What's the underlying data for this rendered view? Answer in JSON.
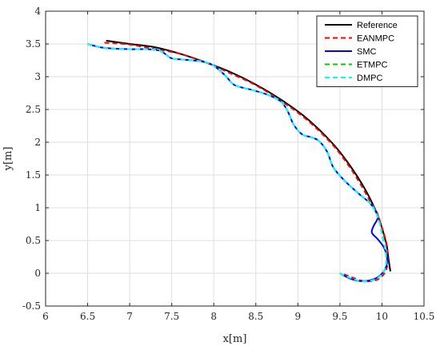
{
  "chart_data": {
    "type": "line",
    "xlabel": "x[m]",
    "ylabel": "y[m]",
    "xlim": [
      6,
      10.5
    ],
    "ylim": [
      -0.5,
      4
    ],
    "xticks": [
      "6",
      "6.5",
      "7",
      "7.5",
      "8",
      "8.5",
      "9",
      "9.5",
      "10",
      "10.5"
    ],
    "yticks": [
      "-0.5",
      "0",
      "0.5",
      "1",
      "1.5",
      "2",
      "2.5",
      "3",
      "3.5",
      "4"
    ],
    "grid": true,
    "legend_position": "top-right",
    "series": [
      {
        "name": "Reference",
        "color": "#000000",
        "dash": "solid",
        "x": [
          6.72,
          7.0,
          7.3,
          7.6,
          7.9,
          8.2,
          8.5,
          8.8,
          9.1,
          9.4,
          9.6,
          9.8,
          9.95,
          10.05,
          10.08,
          10.1
        ],
        "y": [
          3.55,
          3.5,
          3.45,
          3.35,
          3.22,
          3.07,
          2.88,
          2.65,
          2.37,
          2.0,
          1.68,
          1.28,
          0.88,
          0.46,
          0.2,
          0.03
        ]
      },
      {
        "name": "EANMPC",
        "color": "#ff0000",
        "dash": "dashed",
        "x": [
          6.7,
          7.0,
          7.3,
          7.6,
          7.9,
          8.2,
          8.5,
          8.8,
          9.1,
          9.4,
          9.6,
          9.75,
          9.85,
          9.92,
          9.95,
          9.98,
          10.02,
          10.06,
          10.07,
          10.05,
          9.98,
          9.88,
          9.75,
          9.62,
          9.52
        ],
        "y": [
          3.52,
          3.49,
          3.42,
          3.35,
          3.22,
          3.05,
          2.87,
          2.63,
          2.35,
          1.98,
          1.65,
          1.35,
          1.12,
          0.98,
          0.9,
          0.78,
          0.62,
          0.42,
          0.22,
          0.05,
          -0.07,
          -0.12,
          -0.11,
          -0.05,
          0.0
        ]
      },
      {
        "name": "SMC",
        "color": "#0000ff",
        "dash": "solid",
        "x": [
          6.5,
          6.65,
          6.8,
          7.0,
          7.2,
          7.35,
          7.42,
          7.5,
          7.65,
          7.82,
          7.95,
          8.05,
          8.15,
          8.25,
          8.45,
          8.65,
          8.8,
          8.88,
          8.95,
          9.05,
          9.15,
          9.25,
          9.35,
          9.42,
          9.55,
          9.72,
          9.85,
          9.91,
          9.95,
          9.9,
          9.88,
          9.95,
          10.02,
          10.06,
          10.05,
          9.98,
          9.88,
          9.75,
          9.62,
          9.5
        ],
        "y": [
          3.5,
          3.45,
          3.43,
          3.42,
          3.42,
          3.4,
          3.35,
          3.28,
          3.26,
          3.24,
          3.2,
          3.12,
          3.0,
          2.87,
          2.8,
          2.72,
          2.62,
          2.47,
          2.27,
          2.12,
          2.08,
          2.02,
          1.85,
          1.62,
          1.42,
          1.22,
          1.08,
          0.98,
          0.85,
          0.72,
          0.62,
          0.52,
          0.4,
          0.25,
          0.1,
          -0.03,
          -0.1,
          -0.12,
          -0.08,
          0.0
        ]
      },
      {
        "name": "ETMPC",
        "color": "#00cc00",
        "dash": "dashed",
        "x": [
          6.5,
          6.65,
          6.8,
          7.0,
          7.2,
          7.35,
          7.42,
          7.5,
          7.65,
          7.82,
          7.95,
          8.05,
          8.15,
          8.25,
          8.45,
          8.65,
          8.8,
          8.88,
          8.95,
          9.05,
          9.15,
          9.25,
          9.35,
          9.42,
          9.55,
          9.72,
          9.85,
          9.92,
          9.97,
          10.0,
          10.03,
          10.05,
          10.04,
          9.98,
          9.88,
          9.75,
          9.62,
          9.5
        ],
        "y": [
          3.5,
          3.45,
          3.43,
          3.42,
          3.42,
          3.4,
          3.35,
          3.28,
          3.26,
          3.24,
          3.2,
          3.12,
          3.0,
          2.87,
          2.8,
          2.72,
          2.62,
          2.47,
          2.27,
          2.12,
          2.08,
          2.02,
          1.85,
          1.62,
          1.42,
          1.22,
          1.08,
          0.95,
          0.78,
          0.6,
          0.42,
          0.25,
          0.08,
          -0.04,
          -0.11,
          -0.12,
          -0.07,
          0.0
        ]
      },
      {
        "name": "DMPC",
        "color": "#00ffff",
        "dash": "dashed",
        "x": [
          6.5,
          6.65,
          6.8,
          7.0,
          7.2,
          7.35,
          7.42,
          7.5,
          7.65,
          7.82,
          7.95,
          8.05,
          8.15,
          8.25,
          8.45,
          8.65,
          8.8,
          8.88,
          8.95,
          9.05,
          9.15,
          9.25,
          9.35,
          9.42,
          9.55,
          9.72,
          9.85,
          9.92,
          9.97,
          10.0,
          10.03,
          10.05,
          10.04,
          9.98,
          9.88,
          9.75,
          9.62,
          9.5
        ],
        "y": [
          3.5,
          3.45,
          3.43,
          3.42,
          3.42,
          3.4,
          3.35,
          3.28,
          3.26,
          3.24,
          3.2,
          3.12,
          3.0,
          2.87,
          2.8,
          2.72,
          2.62,
          2.47,
          2.27,
          2.12,
          2.08,
          2.02,
          1.85,
          1.62,
          1.42,
          1.22,
          1.08,
          0.95,
          0.78,
          0.6,
          0.42,
          0.25,
          0.08,
          -0.04,
          -0.11,
          -0.12,
          -0.07,
          0.0
        ]
      }
    ]
  }
}
